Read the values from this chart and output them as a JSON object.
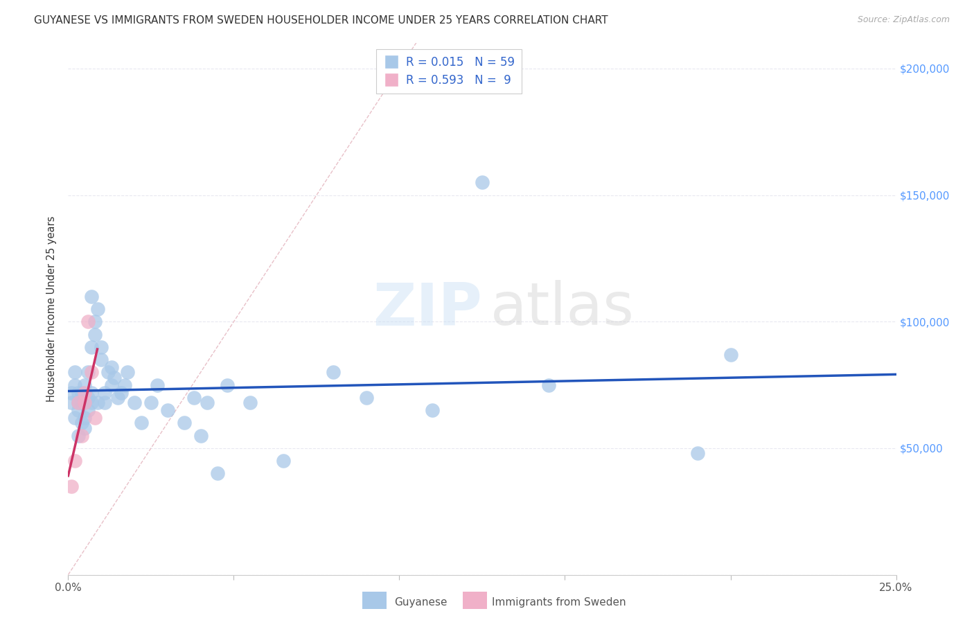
{
  "title": "GUYANESE VS IMMIGRANTS FROM SWEDEN HOUSEHOLDER INCOME UNDER 25 YEARS CORRELATION CHART",
  "source": "Source: ZipAtlas.com",
  "ylabel": "Householder Income Under 25 years",
  "legend_r1": "R = 0.015",
  "legend_n1": "N = 59",
  "legend_r2": "R = 0.593",
  "legend_n2": "N =  9",
  "xmin": 0.0,
  "xmax": 0.25,
  "ymin": 0,
  "ymax": 210000,
  "color_guyanese": "#a8c8e8",
  "color_sweden": "#f0b0c8",
  "color_trend_blue": "#2255bb",
  "color_trend_pink": "#cc3366",
  "color_ref_line": "#e8c0c8",
  "guyanese_x": [
    0.001,
    0.001,
    0.002,
    0.002,
    0.002,
    0.003,
    0.003,
    0.003,
    0.003,
    0.004,
    0.004,
    0.004,
    0.005,
    0.005,
    0.005,
    0.005,
    0.006,
    0.006,
    0.006,
    0.007,
    0.007,
    0.007,
    0.007,
    0.008,
    0.008,
    0.009,
    0.009,
    0.01,
    0.01,
    0.011,
    0.011,
    0.012,
    0.013,
    0.013,
    0.014,
    0.015,
    0.016,
    0.017,
    0.018,
    0.02,
    0.022,
    0.025,
    0.027,
    0.03,
    0.035,
    0.038,
    0.04,
    0.042,
    0.045,
    0.048,
    0.055,
    0.065,
    0.08,
    0.09,
    0.11,
    0.125,
    0.145,
    0.19,
    0.2
  ],
  "guyanese_y": [
    68000,
    72000,
    62000,
    75000,
    80000,
    65000,
    68000,
    72000,
    55000,
    60000,
    68000,
    72000,
    58000,
    62000,
    68000,
    75000,
    65000,
    70000,
    80000,
    68000,
    72000,
    90000,
    110000,
    95000,
    100000,
    105000,
    68000,
    85000,
    90000,
    68000,
    72000,
    80000,
    75000,
    82000,
    78000,
    70000,
    72000,
    75000,
    80000,
    68000,
    60000,
    68000,
    75000,
    65000,
    60000,
    70000,
    55000,
    68000,
    40000,
    75000,
    68000,
    45000,
    80000,
    70000,
    65000,
    155000,
    75000,
    48000,
    87000
  ],
  "sweden_x": [
    0.001,
    0.002,
    0.003,
    0.004,
    0.005,
    0.005,
    0.006,
    0.007,
    0.008
  ],
  "sweden_y": [
    35000,
    45000,
    68000,
    55000,
    68000,
    72000,
    100000,
    80000,
    62000
  ],
  "ytick_positions": [
    0,
    50000,
    100000,
    150000,
    200000
  ],
  "ytick_labels": [
    "",
    "$50,000",
    "$100,000",
    "$150,000",
    "$200,000"
  ],
  "xtick_positions": [
    0.0,
    0.05,
    0.1,
    0.15,
    0.2,
    0.25
  ],
  "xtick_labels_shown": [
    "0.0%",
    "",
    "",
    "",
    "",
    "25.0%"
  ],
  "grid_color": "#e8e8f0",
  "title_fontsize": 11,
  "axis_label_color": "#333333",
  "right_tick_color": "#5599ff"
}
